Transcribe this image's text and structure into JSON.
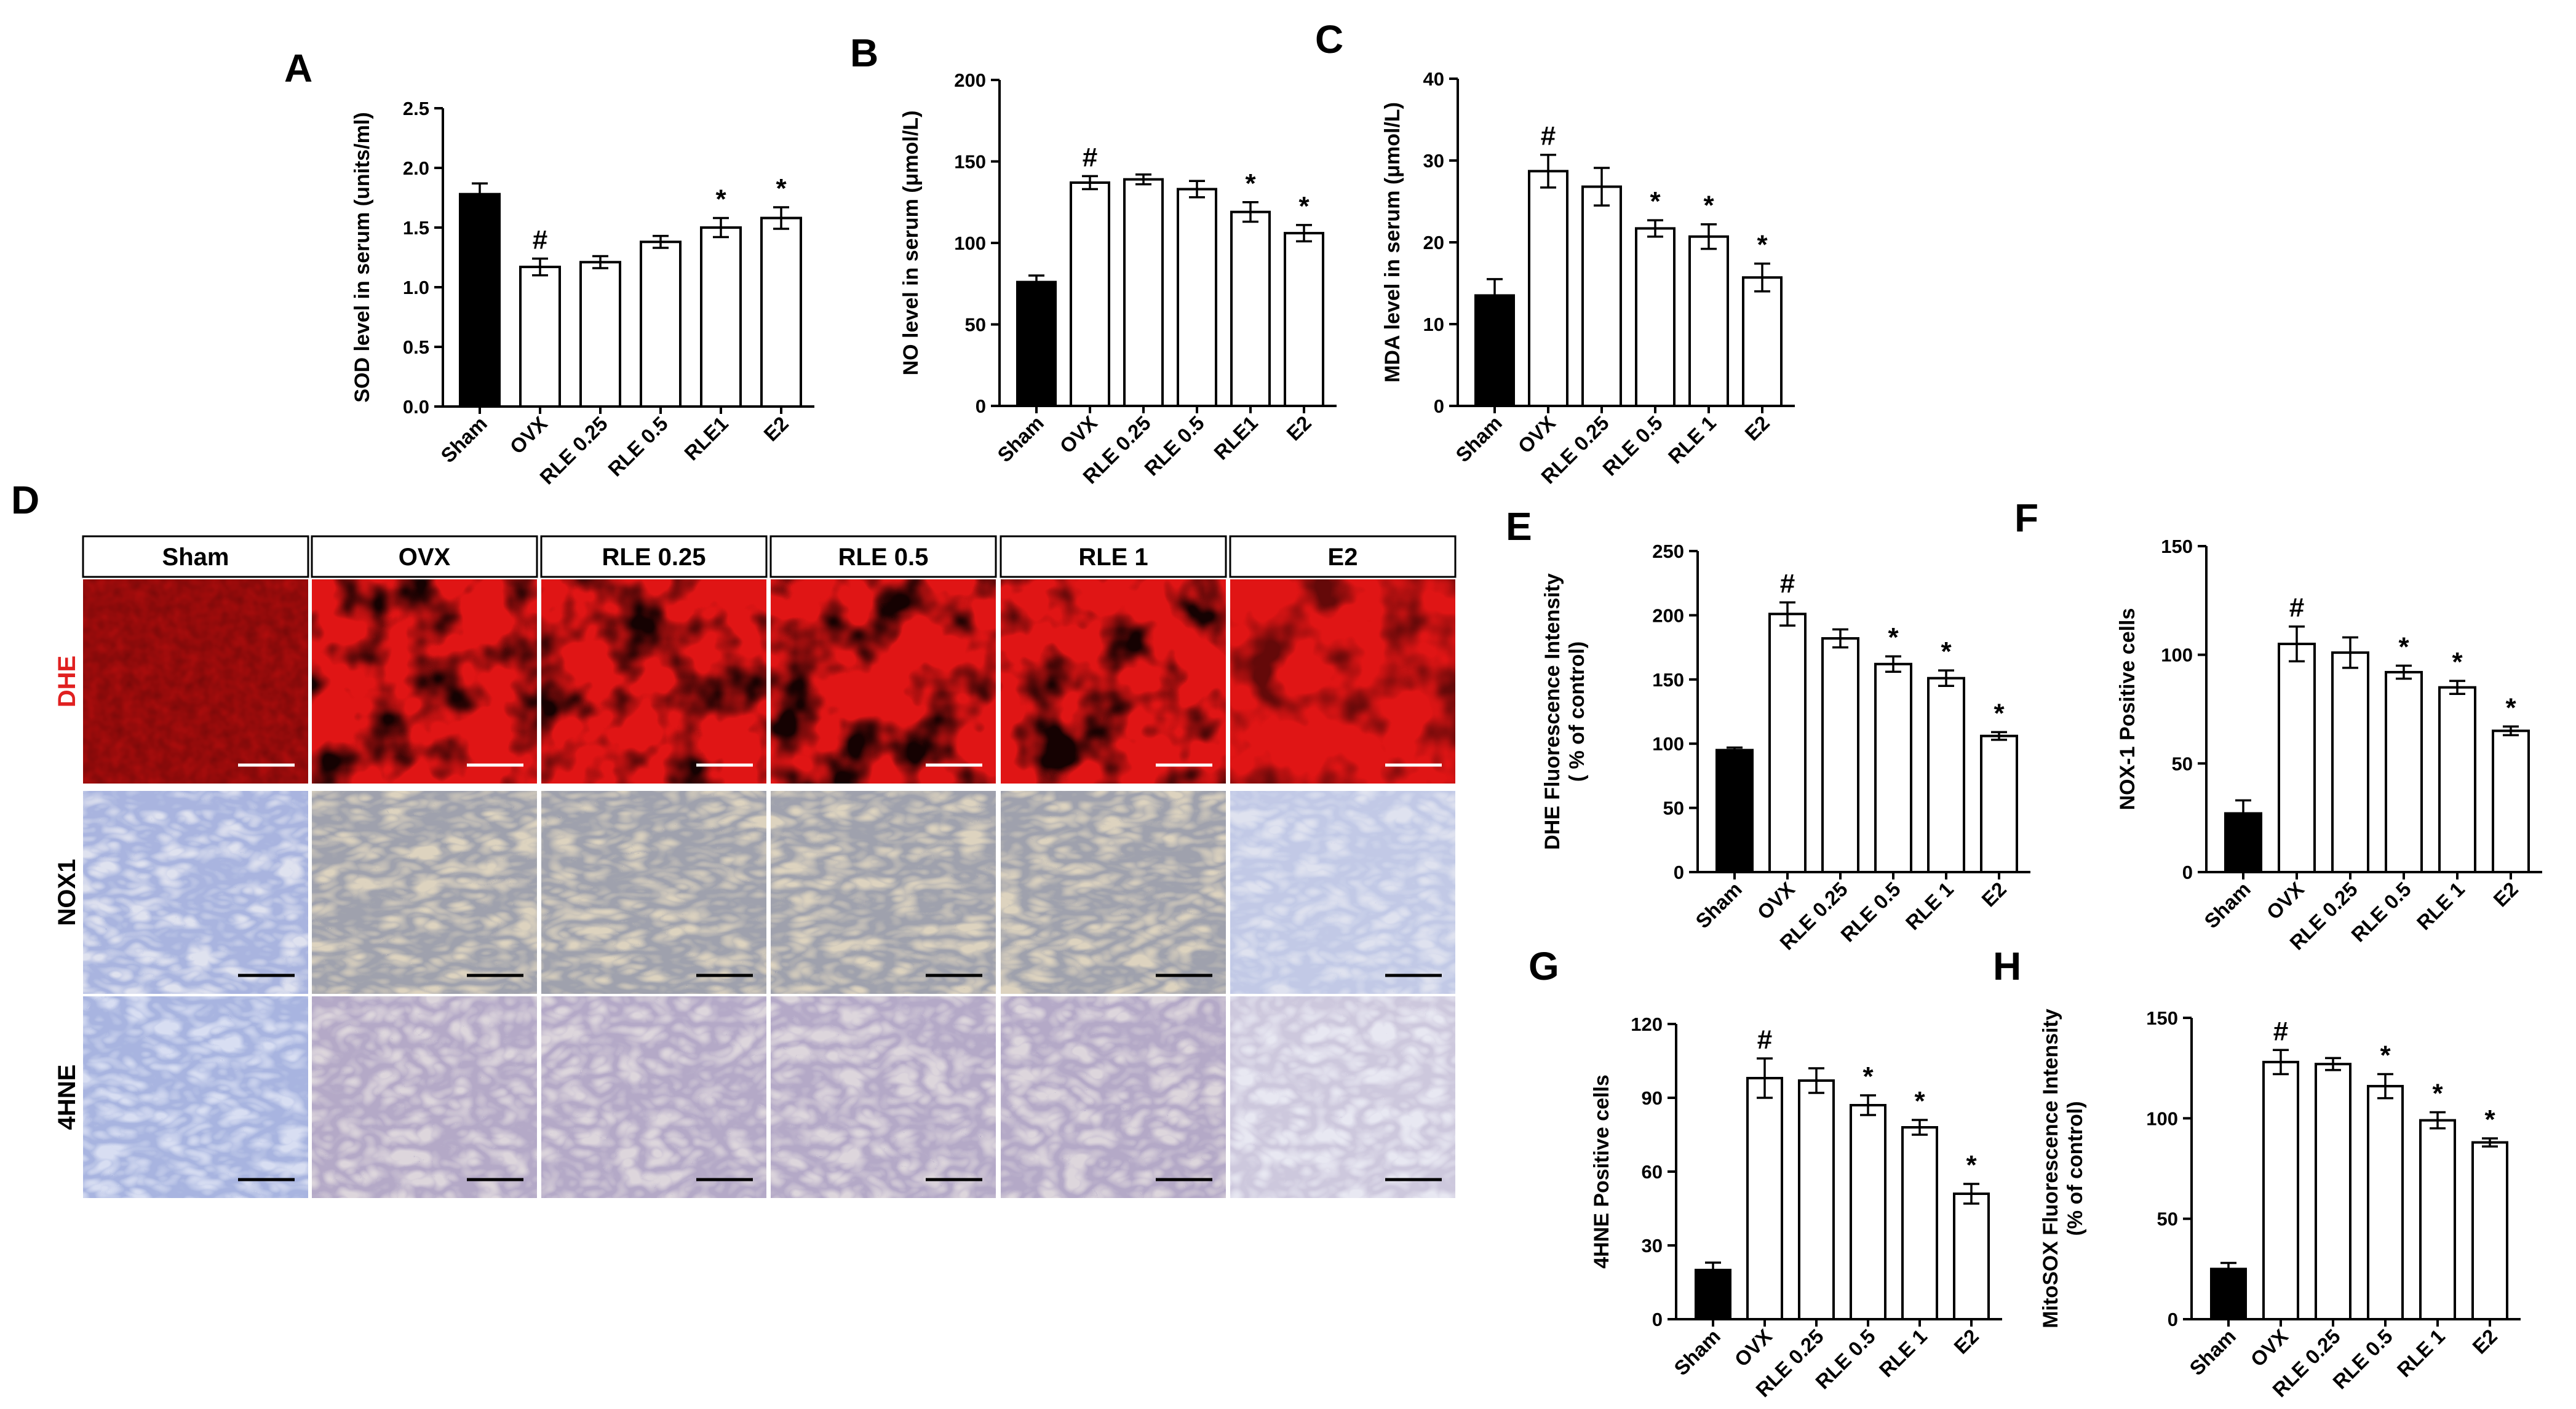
{
  "figure": {
    "panel_letters": [
      "A",
      "B",
      "C",
      "D",
      "E",
      "F",
      "G",
      "H"
    ],
    "micrograph_panel": {
      "letter": "D",
      "columns": [
        "Sham",
        "OVX",
        "RLE 0.25",
        "RLE 0.5",
        "RLE 1",
        "E2"
      ],
      "rows": [
        {
          "label": "DHE",
          "label_color": "#e02020",
          "stain": "fluorescence-red"
        },
        {
          "label": "NOX1",
          "label_color": "#000000",
          "stain": "ihc-brown-blue"
        },
        {
          "label": "4HNE",
          "label_color": "#000000",
          "stain": "ihc-purple-blue"
        }
      ],
      "scale_bars": true
    }
  },
  "chart_data": [
    {
      "panel": "A",
      "type": "bar",
      "ylabel": "SOD level in serum (units/ml)",
      "ylim": [
        0,
        2.5
      ],
      "yticks": [
        "0.0",
        "0.5",
        "1.0",
        "1.5",
        "2.0",
        "2.5"
      ],
      "categories": [
        "Sham",
        "OVX",
        "RLE 0.25",
        "RLE 0.5",
        "RLE1",
        "E2"
      ],
      "values": [
        1.78,
        1.17,
        1.21,
        1.38,
        1.5,
        1.58
      ],
      "errors": [
        0.09,
        0.07,
        0.05,
        0.05,
        0.08,
        0.09
      ],
      "marks": [
        "",
        "#",
        "",
        "",
        "*",
        "*"
      ],
      "fills": [
        "#000000",
        "#ffffff",
        "#ffffff",
        "#ffffff",
        "#ffffff",
        "#ffffff"
      ]
    },
    {
      "panel": "B",
      "type": "bar",
      "ylabel": "NO level in serum (μmol/L)",
      "ylim": [
        0,
        200
      ],
      "yticks": [
        "0",
        "50",
        "100",
        "150",
        "200"
      ],
      "categories": [
        "Sham",
        "OVX",
        "RLE 0.25",
        "RLE 0.5",
        "RLE1",
        "E2"
      ],
      "values": [
        76,
        137,
        139,
        133,
        119,
        106
      ],
      "errors": [
        4,
        4,
        3,
        5,
        6,
        5
      ],
      "marks": [
        "",
        "#",
        "",
        "",
        "*",
        "*"
      ],
      "fills": [
        "#000000",
        "#ffffff",
        "#ffffff",
        "#ffffff",
        "#ffffff",
        "#ffffff"
      ]
    },
    {
      "panel": "C",
      "type": "bar",
      "ylabel": "MDA level in serum (μmol/L)",
      "ylim": [
        0,
        40
      ],
      "yticks": [
        "0",
        "10",
        "20",
        "30",
        "40"
      ],
      "categories": [
        "Sham",
        "OVX",
        "RLE 0.25",
        "RLE 0.5",
        "RLE 1",
        "E2"
      ],
      "values": [
        13.5,
        28.7,
        26.8,
        21.7,
        20.7,
        15.7
      ],
      "errors": [
        2.0,
        2.0,
        2.3,
        1.0,
        1.5,
        1.7
      ],
      "marks": [
        "",
        "#",
        "",
        "*",
        "*",
        "*"
      ],
      "fills": [
        "#000000",
        "#ffffff",
        "#ffffff",
        "#ffffff",
        "#ffffff",
        "#ffffff"
      ]
    },
    {
      "panel": "E",
      "type": "bar",
      "ylabel": [
        "DHE  Fluorescence Intensity",
        "( % of control)"
      ],
      "ylim": [
        0,
        250
      ],
      "yticks": [
        "0",
        "50",
        "100",
        "150",
        "200",
        "250"
      ],
      "categories": [
        "Sham",
        "OVX",
        "RLE 0.25",
        "RLE 0.5",
        "RLE 1",
        "E2"
      ],
      "values": [
        95,
        201,
        182,
        162,
        151,
        106
      ],
      "errors": [
        2,
        9,
        7,
        6,
        6,
        3
      ],
      "marks": [
        "",
        "#",
        "",
        "*",
        "*",
        "*"
      ],
      "fills": [
        "#000000",
        "#ffffff",
        "#ffffff",
        "#ffffff",
        "#ffffff",
        "#ffffff"
      ]
    },
    {
      "panel": "F",
      "type": "bar",
      "ylabel": "NOX-1 Positive cells",
      "ylim": [
        0,
        150
      ],
      "yticks": [
        "0",
        "50",
        "100",
        "150"
      ],
      "categories": [
        "Sham",
        "OVX",
        "RLE 0.25",
        "RLE 0.5",
        "RLE 1",
        "E2"
      ],
      "values": [
        27,
        105,
        101,
        92,
        85,
        65
      ],
      "errors": [
        6,
        8,
        7,
        3,
        3,
        2
      ],
      "marks": [
        "",
        "#",
        "",
        "*",
        "*",
        "*"
      ],
      "fills": [
        "#000000",
        "#ffffff",
        "#ffffff",
        "#ffffff",
        "#ffffff",
        "#ffffff"
      ]
    },
    {
      "panel": "G",
      "type": "bar",
      "ylabel": "4HNE  Positive cells",
      "ylim": [
        0,
        120
      ],
      "yticks": [
        "0",
        "30",
        "60",
        "90",
        "120"
      ],
      "categories": [
        "Sham",
        "OVX",
        "RLE 0.25",
        "RLE 0.5",
        "RLE 1",
        "E2"
      ],
      "values": [
        20,
        98,
        97,
        87,
        78,
        51
      ],
      "errors": [
        3,
        8,
        5,
        4,
        3,
        4
      ],
      "marks": [
        "",
        "#",
        "",
        "*",
        "*",
        "*"
      ],
      "fills": [
        "#000000",
        "#ffffff",
        "#ffffff",
        "#ffffff",
        "#ffffff",
        "#ffffff"
      ]
    },
    {
      "panel": "H",
      "type": "bar",
      "ylabel": [
        "MitoSOX Fluorescence Intensity",
        "(% of control)"
      ],
      "ylim": [
        0,
        150
      ],
      "yticks": [
        "0",
        "50",
        "100",
        "150"
      ],
      "categories": [
        "Sham",
        "OVX",
        "RLE 0.25",
        "RLE 0.5",
        "RLE 1",
        "E2"
      ],
      "values": [
        25,
        128,
        127,
        116,
        99,
        88
      ],
      "errors": [
        3,
        6,
        3,
        6,
        4,
        2
      ],
      "marks": [
        "",
        "#",
        "",
        "*",
        "*",
        "*"
      ],
      "fills": [
        "#000000",
        "#ffffff",
        "#ffffff",
        "#ffffff",
        "#ffffff",
        "#ffffff"
      ]
    }
  ]
}
